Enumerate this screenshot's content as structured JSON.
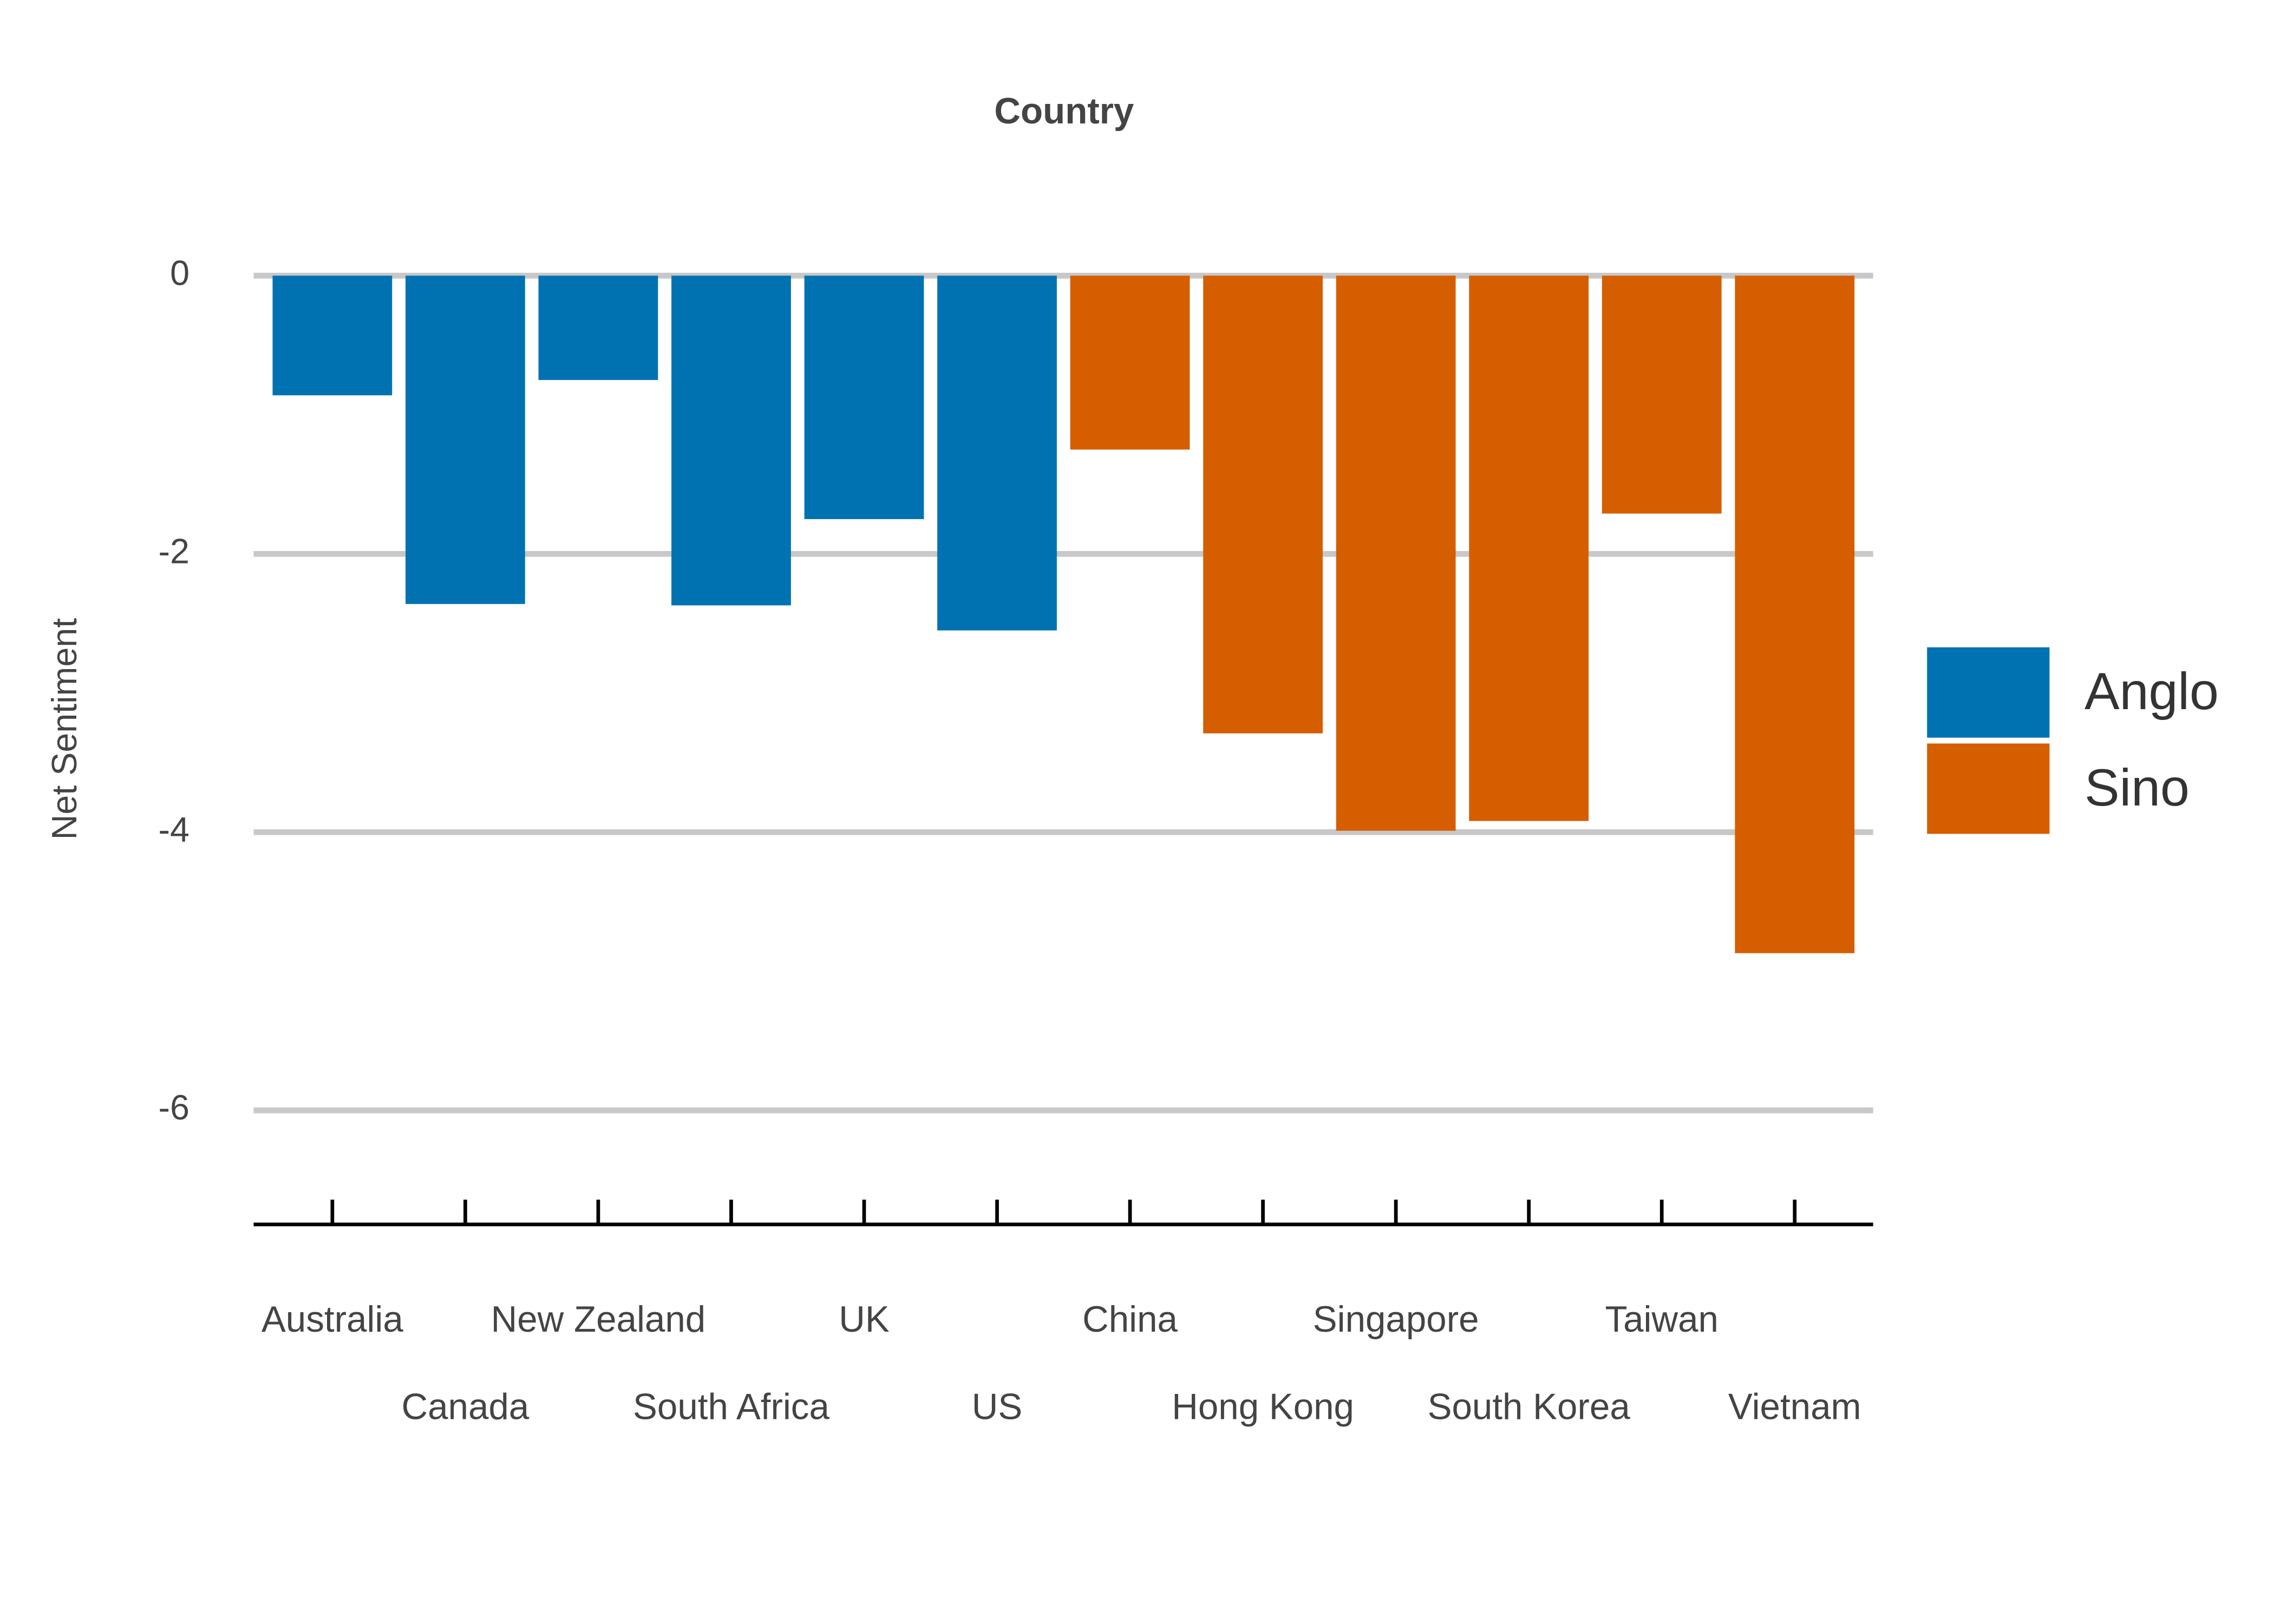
{
  "chart_data": {
    "type": "bar",
    "title": "Country",
    "y_label": "Net Sentiment",
    "categories": [
      "Australia",
      "Canada",
      "New Zealand",
      "South Africa",
      "UK",
      "US",
      "China",
      "Hong Kong",
      "Singapore",
      "South Korea",
      "Taiwan",
      "Vietnam"
    ],
    "series": [
      {
        "name": "Anglo",
        "color": "#0072B2",
        "values": [
          -0.86,
          -2.36,
          -0.75,
          -2.37,
          -1.75,
          -2.55,
          null,
          null,
          null,
          null,
          null,
          null
        ]
      },
      {
        "name": "Sino",
        "color": "#D55E00",
        "values": [
          null,
          null,
          null,
          null,
          null,
          null,
          -1.25,
          -3.29,
          -3.99,
          -3.92,
          -1.71,
          -4.87
        ]
      }
    ],
    "ylim": [
      -6.82,
      0
    ],
    "yticks": [
      0,
      -2,
      -4,
      -6
    ],
    "grid": true,
    "legend": "right"
  }
}
